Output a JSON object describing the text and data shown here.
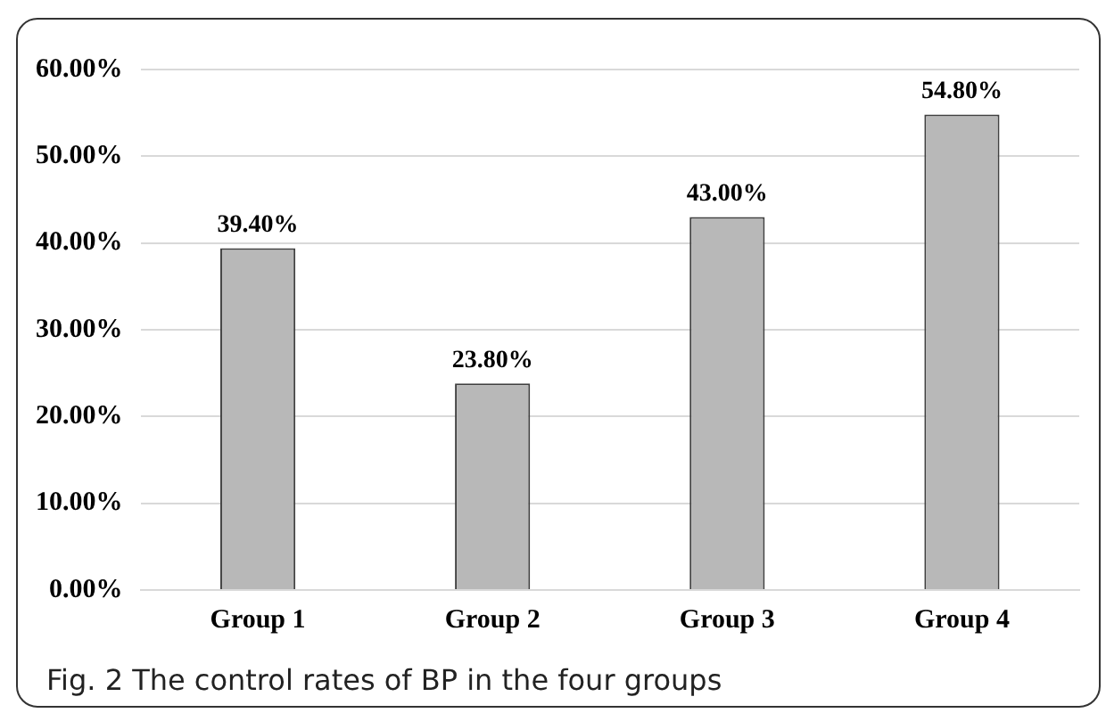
{
  "chart_data": {
    "type": "bar",
    "title": "Fig. 2  The control rates of BP in the four groups",
    "categories": [
      "Group 1",
      "Group 2",
      "Group 3",
      "Group 4"
    ],
    "values": [
      39.4,
      23.8,
      43.0,
      54.8
    ],
    "value_labels": [
      "39.40%",
      "23.80%",
      "43.00%",
      "54.80%"
    ],
    "color": "#b8b8b8",
    "ylim": [
      0,
      60
    ],
    "yticks": [
      {
        "value": 0,
        "label": "0.00%"
      },
      {
        "value": 10,
        "label": "10.00%"
      },
      {
        "value": 20,
        "label": "20.00%"
      },
      {
        "value": 30,
        "label": "30.00%"
      },
      {
        "value": 40,
        "label": "40.00%"
      },
      {
        "value": 50,
        "label": "50.00%"
      },
      {
        "value": 60,
        "label": "60.00%"
      }
    ],
    "grid": "y"
  }
}
